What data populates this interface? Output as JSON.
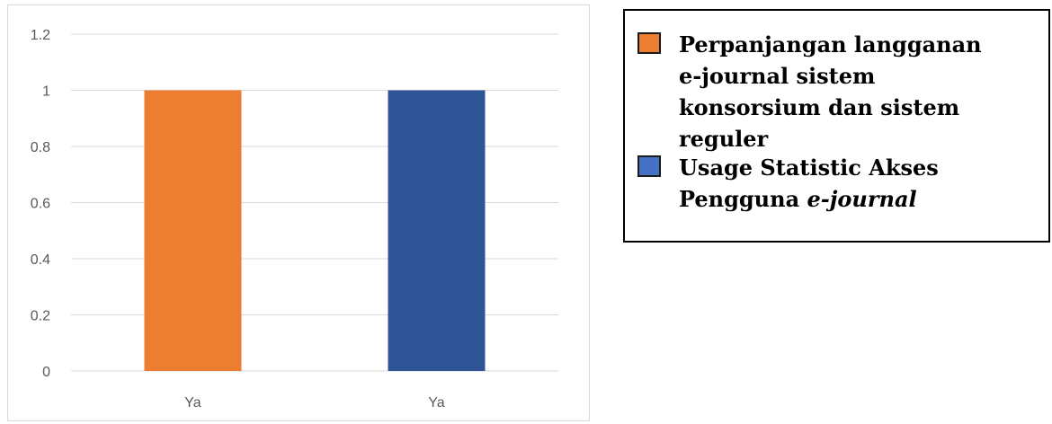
{
  "chart_data": {
    "type": "bar",
    "categories": [
      "Ya",
      "Ya"
    ],
    "values": [
      1,
      1
    ],
    "colors": [
      "#ed7d31",
      "#2f5597"
    ],
    "ylim": [
      0,
      1.2
    ],
    "yticks": [
      "0",
      "0.2",
      "0.4",
      "0.6",
      "0.8",
      "1",
      "1.2"
    ],
    "grid": true,
    "legend_placement": "right",
    "legend": [
      {
        "text": "Perpanjangan langganan e-journal sistem konsorsium dan sistem reguler",
        "color": "#ed7d31"
      },
      {
        "text": "Usage Statistic Akses Pengguna ",
        "italic_text": "e-journal",
        "color": "#4472c4"
      }
    ]
  }
}
